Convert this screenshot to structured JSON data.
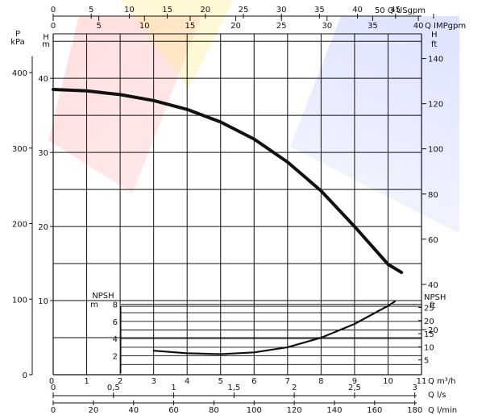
{
  "chart_data": {
    "type": "line",
    "title": "",
    "top_axes": [
      {
        "label": "Q USgpm",
        "ticks": [
          "0",
          "5",
          "10",
          "15",
          "20",
          "25",
          "30",
          "35",
          "40",
          "45",
          "50"
        ]
      },
      {
        "label": "Q IMPgpm",
        "ticks": [
          "0",
          "5",
          "10",
          "15",
          "20",
          "25",
          "30",
          "35",
          "40"
        ]
      }
    ],
    "left_axes": [
      {
        "label": "P kPa",
        "ticks": [
          "0",
          "100",
          "200",
          "300",
          "400"
        ]
      },
      {
        "label": "H m",
        "ticks": [
          "10",
          "20",
          "30",
          "40"
        ],
        "range": [
          0,
          46
        ]
      }
    ],
    "right_axis": {
      "label": "H ft",
      "ticks": [
        "20",
        "40",
        "60",
        "80",
        "100",
        "120",
        "140"
      ]
    },
    "npsh_axes": {
      "left": {
        "label": "NPSH m",
        "ticks": [
          "2",
          "4",
          "6",
          "8"
        ]
      },
      "right": {
        "label": "NPSH ft",
        "ticks": [
          "5",
          "10",
          "15",
          "20",
          "25"
        ]
      }
    },
    "bottom_axes": [
      {
        "label": "Q m³/h",
        "ticks": [
          "0",
          "1",
          "2",
          "3",
          "4",
          "5",
          "6",
          "7",
          "8",
          "9",
          "10",
          "11"
        ],
        "range": [
          0,
          11
        ]
      },
      {
        "label": "Q l/s",
        "ticks": [
          "0",
          "0,5",
          "1",
          "1,5",
          "2",
          "2,5",
          "3"
        ]
      },
      {
        "label": "Q l/min",
        "ticks": [
          "0",
          "20",
          "40",
          "60",
          "80",
          "100",
          "120",
          "140",
          "160",
          "180"
        ]
      }
    ],
    "series": [
      {
        "values": [
          [
            0,
            38.5
          ],
          [
            1,
            38.3
          ],
          [
            2,
            37.8
          ],
          [
            3,
            37.0
          ],
          [
            4,
            35.8
          ],
          [
            5,
            34.1
          ],
          [
            6,
            31.8
          ],
          [
            7,
            28.7
          ],
          [
            8,
            24.8
          ],
          [
            9,
            20.0
          ],
          [
            10,
            14.9
          ],
          [
            10.4,
            13.8
          ]
        ]
      },
      {
        "values": [
          [
            3,
            2.6
          ],
          [
            4,
            2.3
          ],
          [
            5,
            2.2
          ],
          [
            6,
            2.4
          ],
          [
            7,
            3.0
          ],
          [
            8,
            4.1
          ],
          [
            9,
            5.7
          ],
          [
            10,
            7.8
          ],
          [
            10.2,
            8.3
          ]
        ]
      }
    ],
    "grid": true
  }
}
